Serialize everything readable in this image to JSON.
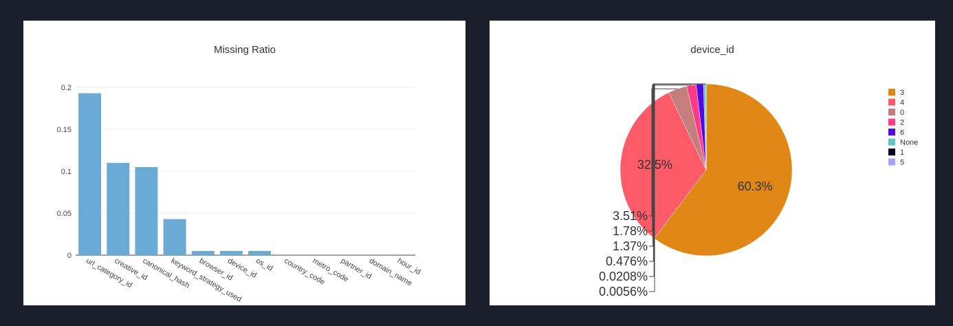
{
  "chart_data": [
    {
      "type": "bar",
      "title": "Missing Ratio",
      "categories": [
        "url_category_id",
        "creative_id",
        "canonical_hash",
        "keyword_strategy_used",
        "browser_id",
        "device_id",
        "os_id",
        "country_code",
        "metro_code",
        "partner_id",
        "domain_name",
        "hour_id"
      ],
      "values": [
        0.193,
        0.11,
        0.105,
        0.043,
        0.005,
        0.005,
        0.005,
        0,
        0,
        0,
        0,
        0
      ],
      "ylim": [
        0,
        0.2
      ],
      "yticks": [
        0,
        0.05,
        0.1,
        0.15,
        0.2
      ],
      "ytick_labels": [
        "0",
        "0.05",
        "0.1",
        "0.15",
        "0.2"
      ],
      "color": "#6aaad4",
      "grid": true
    },
    {
      "type": "pie",
      "title": "device_id",
      "labels": [
        "3",
        "4",
        "0",
        "2",
        "6",
        "None",
        "1",
        "5"
      ],
      "values": [
        60.3,
        32.5,
        3.51,
        1.78,
        1.37,
        0.476,
        0.0208,
        0.0056
      ],
      "text_labels": [
        "60.3%",
        "32.5%",
        "3.51%",
        "1.78%",
        "1.37%",
        "0.476%",
        "0.0208%",
        "0.0056%"
      ],
      "colors": [
        "#e08716",
        "#fe5b68",
        "#c47e7e",
        "#ff3a87",
        "#4e0ae3",
        "#64c4c4",
        "#05012a",
        "#a8a2ff"
      ],
      "legend_position": "right"
    }
  ]
}
